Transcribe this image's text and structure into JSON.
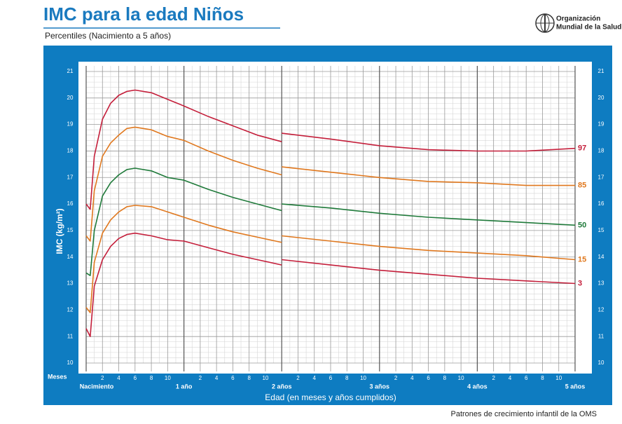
{
  "header": {
    "title": "IMC para la edad Niños",
    "subtitle": "Percentiles (Nacimiento a 5 años)",
    "org_name": [
      "Organización",
      "Mundial de la Salud"
    ]
  },
  "footer": "Patrones de crecimiento infantil de la OMS",
  "chart_data": {
    "type": "line",
    "x_label": "Edad (en meses y años cumplidos)",
    "y_label": "IMC (kg/m²)",
    "x_unit_label": "Meses",
    "x": [
      0,
      0.5,
      1,
      2,
      3,
      4,
      5,
      6,
      8,
      10,
      12,
      15,
      18,
      21,
      24,
      24,
      24,
      30,
      36,
      42,
      48,
      54,
      60
    ],
    "series": [
      {
        "name": "97",
        "color": "#c41e3a",
        "values": [
          16.0,
          15.8,
          17.8,
          19.2,
          19.8,
          20.1,
          20.25,
          20.3,
          20.2,
          19.95,
          19.7,
          19.3,
          18.95,
          18.6,
          18.35,
          null,
          18.67,
          18.45,
          18.2,
          18.05,
          18.0,
          18.0,
          18.1
        ]
      },
      {
        "name": "85",
        "color": "#e0781e",
        "values": [
          14.8,
          14.6,
          16.5,
          17.8,
          18.3,
          18.6,
          18.85,
          18.9,
          18.8,
          18.55,
          18.4,
          18.0,
          17.65,
          17.35,
          17.1,
          null,
          17.4,
          17.2,
          17.0,
          16.85,
          16.8,
          16.7,
          16.7
        ]
      },
      {
        "name": "50",
        "color": "#1f7a3a",
        "values": [
          13.4,
          13.3,
          15.0,
          16.3,
          16.8,
          17.1,
          17.3,
          17.35,
          17.25,
          17.0,
          16.9,
          16.55,
          16.25,
          16.0,
          15.75,
          null,
          16.0,
          15.85,
          15.65,
          15.5,
          15.4,
          15.3,
          15.2
        ]
      },
      {
        "name": "15",
        "color": "#e0781e",
        "values": [
          12.1,
          11.9,
          13.8,
          14.9,
          15.4,
          15.7,
          15.9,
          15.95,
          15.9,
          15.7,
          15.5,
          15.2,
          14.95,
          14.75,
          14.55,
          null,
          14.8,
          14.6,
          14.4,
          14.25,
          14.15,
          14.05,
          13.9
        ]
      },
      {
        "name": "3",
        "color": "#c41e3a",
        "values": [
          11.3,
          11.0,
          12.9,
          13.9,
          14.4,
          14.7,
          14.85,
          14.9,
          14.8,
          14.65,
          14.6,
          14.35,
          14.1,
          13.9,
          13.7,
          null,
          13.9,
          13.7,
          13.5,
          13.35,
          13.2,
          13.1,
          13.0
        ]
      }
    ],
    "xlim": [
      0,
      60
    ],
    "ylim": [
      10,
      21
    ],
    "xticks": [
      {
        "value": 0,
        "label": "Nacimiento"
      },
      2,
      4,
      6,
      8,
      10,
      {
        "value": 12,
        "label": "1 año"
      },
      {
        "value": 14,
        "label": "2"
      },
      {
        "value": 16,
        "label": "4"
      },
      {
        "value": 18,
        "label": "6"
      },
      {
        "value": 20,
        "label": "8"
      },
      {
        "value": 22,
        "label": "10"
      },
      {
        "value": 24,
        "label": "2 años"
      },
      {
        "value": 26,
        "label": "2"
      },
      {
        "value": 28,
        "label": "4"
      },
      {
        "value": 30,
        "label": "6"
      },
      {
        "value": 32,
        "label": "8"
      },
      {
        "value": 34,
        "label": "10"
      },
      {
        "value": 36,
        "label": "3 años"
      },
      {
        "value": 38,
        "label": "2"
      },
      {
        "value": 40,
        "label": "4"
      },
      {
        "value": 42,
        "label": "6"
      },
      {
        "value": 44,
        "label": "8"
      },
      {
        "value": 46,
        "label": "10"
      },
      {
        "value": 48,
        "label": "4 años"
      },
      {
        "value": 50,
        "label": "2"
      },
      {
        "value": 52,
        "label": "4"
      },
      {
        "value": 54,
        "label": "6"
      },
      {
        "value": 56,
        "label": "8"
      },
      {
        "value": 58,
        "label": "10"
      },
      {
        "value": 60,
        "label": "5 años"
      }
    ],
    "yticks": [
      10,
      11,
      12,
      13,
      14,
      15,
      16,
      17,
      18,
      19,
      20,
      21
    ],
    "grid": true,
    "frame_color": "#0e7cc1"
  }
}
